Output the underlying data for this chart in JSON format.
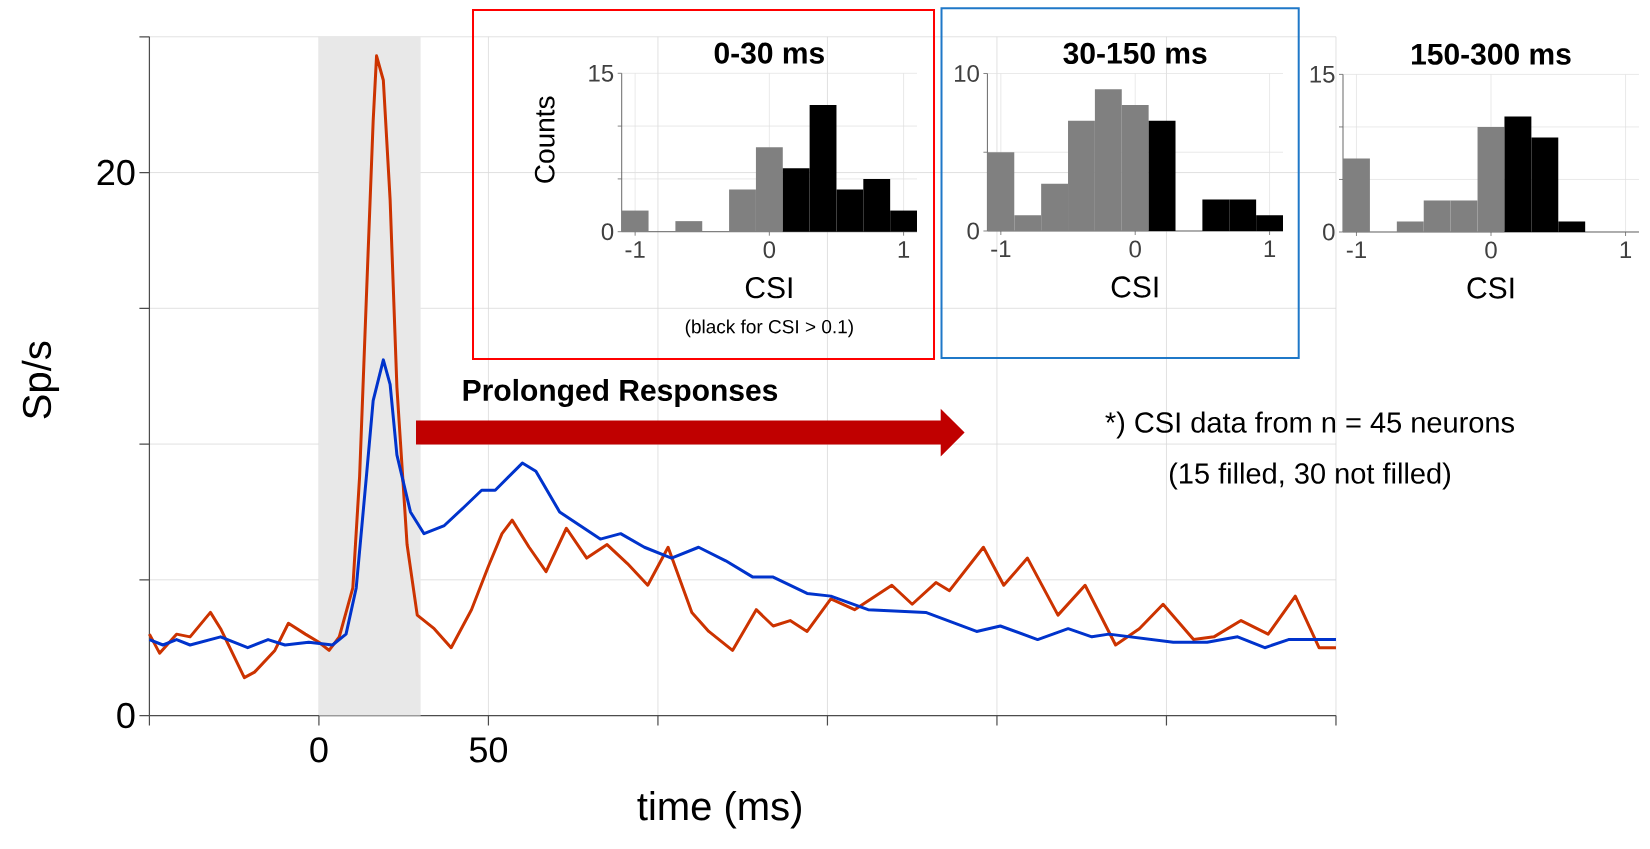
{
  "chart_data": [
    {
      "type": "line",
      "xlabel": "time (ms)",
      "ylabel": "Sp/s",
      "xlim": [
        -50,
        300
      ],
      "ylim": [
        0,
        25
      ],
      "xticks": [
        {
          "value": -50,
          "label": null
        },
        0,
        50,
        {
          "value": 100,
          "label": null
        },
        {
          "value": 150,
          "label": null
        },
        {
          "value": 200,
          "label": null
        },
        {
          "value": 250,
          "label": null
        },
        {
          "value": 300,
          "label": null
        }
      ],
      "yticks": [
        0,
        {
          "value": 5,
          "label": null
        },
        {
          "value": 10,
          "label": null
        },
        {
          "value": 15,
          "label": null
        },
        20,
        {
          "value": 25,
          "label": null
        }
      ],
      "grid": true,
      "bands": [
        {
          "axis": "x",
          "from": 0,
          "to": 30,
          "color": "#e8e8e8"
        }
      ],
      "annotations": [
        "**Prolonged Responses**",
        "*) CSI data from n = 45 neurons",
        "(15 filled, 30 not filled)"
      ],
      "series": [
        {
          "color": "#cc3300",
          "x": [
            -50,
            -47,
            -42,
            -38,
            -32,
            -29,
            -22,
            -19,
            -13,
            -9,
            -4,
            0,
            3,
            6,
            10,
            12,
            14,
            16,
            17,
            19,
            21,
            23,
            26,
            29,
            34,
            39,
            45,
            50,
            54,
            57,
            62,
            67,
            73,
            79,
            85,
            91,
            97,
            103,
            110,
            115,
            122,
            129,
            134,
            139,
            144,
            151,
            158,
            169,
            175,
            182,
            186,
            196,
            202,
            209,
            218,
            226,
            235,
            242,
            249,
            258,
            264,
            272,
            280,
            288,
            295,
            300
          ],
          "values": [
            3.0,
            2.3,
            3.0,
            2.9,
            3.8,
            3.2,
            1.4,
            1.6,
            2.4,
            3.4,
            3.0,
            2.7,
            2.4,
            2.9,
            4.7,
            8.8,
            15.4,
            21.9,
            24.3,
            23.4,
            19.0,
            12.1,
            6.3,
            3.7,
            3.2,
            2.5,
            3.9,
            5.5,
            6.7,
            7.2,
            6.2,
            5.3,
            6.9,
            5.8,
            6.3,
            5.6,
            4.8,
            6.2,
            3.8,
            3.1,
            2.4,
            3.9,
            3.3,
            3.5,
            3.1,
            4.3,
            3.9,
            4.8,
            4.1,
            4.9,
            4.6,
            6.2,
            4.8,
            5.8,
            3.7,
            4.8,
            2.6,
            3.2,
            4.1,
            2.8,
            2.9,
            3.5,
            3.0,
            4.4,
            2.5,
            2.5
          ]
        },
        {
          "color": "#0033cc",
          "x": [
            -50,
            -46,
            -42,
            -38,
            -29,
            -21,
            -15,
            -10,
            -3,
            4,
            8,
            11,
            14,
            16,
            19,
            21,
            23,
            27,
            31,
            37,
            43,
            48,
            52,
            60,
            64,
            71,
            77,
            83,
            89,
            96,
            104,
            112,
            120,
            128,
            134,
            144,
            151,
            162,
            179,
            194,
            201,
            212,
            221,
            228,
            233,
            252,
            262,
            271,
            279,
            286,
            300
          ],
          "values": [
            2.8,
            2.6,
            2.8,
            2.6,
            2.9,
            2.5,
            2.8,
            2.6,
            2.7,
            2.6,
            3.0,
            4.7,
            8.8,
            11.6,
            13.1,
            12.2,
            9.6,
            7.5,
            6.7,
            7.0,
            7.7,
            8.3,
            8.3,
            9.3,
            9.0,
            7.5,
            7.0,
            6.5,
            6.7,
            6.2,
            5.8,
            6.2,
            5.7,
            5.1,
            5.1,
            4.5,
            4.4,
            3.9,
            3.8,
            3.1,
            3.3,
            2.8,
            3.2,
            2.9,
            3.0,
            2.7,
            2.7,
            2.9,
            2.5,
            2.8,
            2.8
          ]
        }
      ]
    },
    {
      "type": "histogram",
      "title": "0-30 ms",
      "xlabel": "CSI",
      "ylabel": "Counts",
      "annotations": [
        "(black for CSI > 0.1)"
      ],
      "bins": [
        -1.1,
        -0.9,
        -0.7,
        -0.5,
        -0.3,
        -0.1,
        0.1,
        0.3,
        0.5,
        0.7,
        0.9,
        1.1
      ],
      "values": [
        2,
        0,
        1,
        0,
        4,
        8,
        6,
        12,
        4,
        5,
        2
      ],
      "colors": [
        "#808080",
        "#808080",
        "#808080",
        "#808080",
        "#808080",
        "#808080",
        "#000000",
        "#000000",
        "#000000",
        "#000000",
        "#000000"
      ],
      "xlim": [
        -1.1,
        1.1
      ],
      "ylim": [
        0,
        15
      ],
      "xticks": [
        -1,
        0,
        1
      ],
      "yticks": [
        0,
        {
          "value": 5,
          "label": null
        },
        {
          "value": 10,
          "label": null
        },
        15
      ],
      "grid": true
    },
    {
      "type": "histogram",
      "title": "30-150 ms",
      "xlabel": "CSI",
      "bins": [
        -1.1,
        -0.9,
        -0.7,
        -0.5,
        -0.3,
        -0.1,
        0.1,
        0.3,
        0.5,
        0.7,
        0.9,
        1.1
      ],
      "values": [
        5,
        1,
        3,
        7,
        9,
        8,
        7,
        0,
        2,
        2,
        1
      ],
      "colors": [
        "#808080",
        "#808080",
        "#808080",
        "#808080",
        "#808080",
        "#808080",
        "#000000",
        "#000000",
        "#000000",
        "#000000",
        "#000000"
      ],
      "xlim": [
        -1.1,
        1.1
      ],
      "ylim": [
        0,
        10
      ],
      "xticks": [
        -1,
        0,
        1
      ],
      "yticks": [
        0,
        {
          "value": 5,
          "label": null
        },
        10
      ],
      "grid": true
    },
    {
      "type": "histogram",
      "title": "150-300 ms",
      "xlabel": "CSI",
      "bins": [
        -1.1,
        -0.9,
        -0.7,
        -0.5,
        -0.3,
        -0.1,
        0.1,
        0.3,
        0.5,
        0.7,
        0.9,
        1.1
      ],
      "values": [
        7,
        0,
        1,
        3,
        3,
        10,
        11,
        9,
        1,
        0,
        0
      ],
      "colors": [
        "#808080",
        "#808080",
        "#808080",
        "#808080",
        "#808080",
        "#808080",
        "#000000",
        "#000000",
        "#000000",
        "#000000",
        "#000000"
      ],
      "xlim": [
        -1.1,
        1.1
      ],
      "ylim": [
        0,
        15
      ],
      "xticks": [
        -1,
        0,
        1
      ],
      "yticks": [
        0,
        {
          "value": 5,
          "label": null
        },
        {
          "value": 10,
          "label": null
        },
        15
      ],
      "grid": true
    }
  ]
}
